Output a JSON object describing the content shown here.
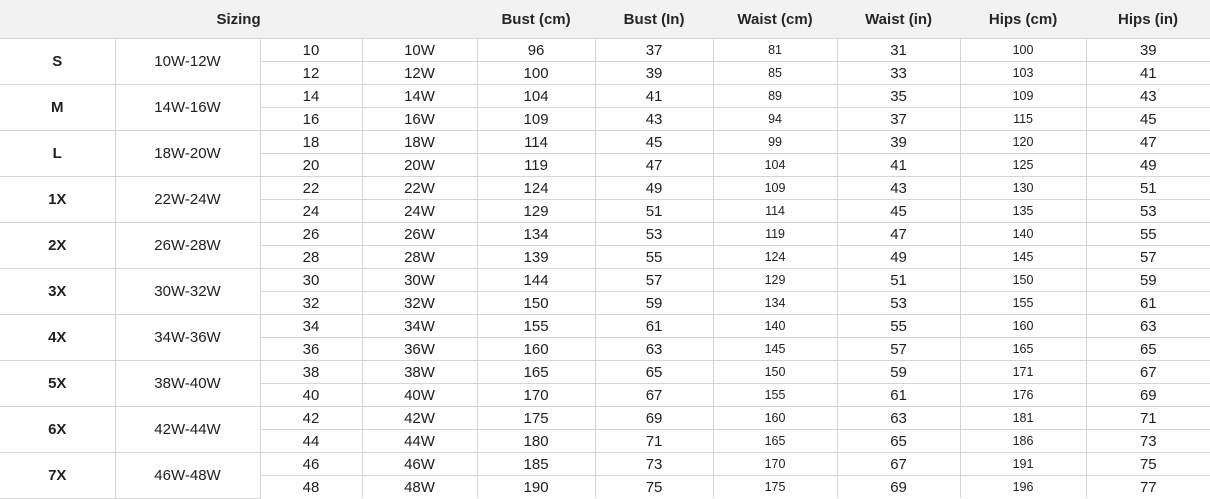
{
  "table": {
    "headers": {
      "sizing": "Sizing",
      "bust_cm": "Bust (cm)",
      "bust_in": "Bust (In)",
      "waist_cm": "Waist (cm)",
      "waist_in": "Waist (in)",
      "hips_cm": "Hips (cm)",
      "hips_in": "Hips (in)"
    },
    "columns_order": [
      "num",
      "numw",
      "bust-cm",
      "bust-in",
      "waist-cm",
      "waist-in",
      "hips-cm",
      "hips-in"
    ],
    "groups": [
      {
        "size": "S",
        "range": "10W-12W",
        "rows": [
          [
            "10",
            "10W",
            "96",
            "37",
            "81",
            "31",
            "100",
            "39"
          ],
          [
            "12",
            "12W",
            "100",
            "39",
            "85",
            "33",
            "103",
            "41"
          ]
        ]
      },
      {
        "size": "M",
        "range": "14W-16W",
        "rows": [
          [
            "14",
            "14W",
            "104",
            "41",
            "89",
            "35",
            "109",
            "43"
          ],
          [
            "16",
            "16W",
            "109",
            "43",
            "94",
            "37",
            "115",
            "45"
          ]
        ]
      },
      {
        "size": "L",
        "range": "18W-20W",
        "rows": [
          [
            "18",
            "18W",
            "114",
            "45",
            "99",
            "39",
            "120",
            "47"
          ],
          [
            "20",
            "20W",
            "119",
            "47",
            "104",
            "41",
            "125",
            "49"
          ]
        ]
      },
      {
        "size": "1X",
        "range": "22W-24W",
        "rows": [
          [
            "22",
            "22W",
            "124",
            "49",
            "109",
            "43",
            "130",
            "51"
          ],
          [
            "24",
            "24W",
            "129",
            "51",
            "114",
            "45",
            "135",
            "53"
          ]
        ]
      },
      {
        "size": "2X",
        "range": "26W-28W",
        "rows": [
          [
            "26",
            "26W",
            "134",
            "53",
            "119",
            "47",
            "140",
            "55"
          ],
          [
            "28",
            "28W",
            "139",
            "55",
            "124",
            "49",
            "145",
            "57"
          ]
        ]
      },
      {
        "size": "3X",
        "range": "30W-32W",
        "rows": [
          [
            "30",
            "30W",
            "144",
            "57",
            "129",
            "51",
            "150",
            "59"
          ],
          [
            "32",
            "32W",
            "150",
            "59",
            "134",
            "53",
            "155",
            "61"
          ]
        ]
      },
      {
        "size": "4X",
        "range": "34W-36W",
        "rows": [
          [
            "34",
            "34W",
            "155",
            "61",
            "140",
            "55",
            "160",
            "63"
          ],
          [
            "36",
            "36W",
            "160",
            "63",
            "145",
            "57",
            "165",
            "65"
          ]
        ]
      },
      {
        "size": "5X",
        "range": "38W-40W",
        "rows": [
          [
            "38",
            "38W",
            "165",
            "65",
            "150",
            "59",
            "171",
            "67"
          ],
          [
            "40",
            "40W",
            "170",
            "67",
            "155",
            "61",
            "176",
            "69"
          ]
        ]
      },
      {
        "size": "6X",
        "range": "42W-44W",
        "rows": [
          [
            "42",
            "42W",
            "175",
            "69",
            "160",
            "63",
            "181",
            "71"
          ],
          [
            "44",
            "44W",
            "180",
            "71",
            "165",
            "65",
            "186",
            "73"
          ]
        ]
      },
      {
        "size": "7X",
        "range": "46W-48W",
        "rows": [
          [
            "46",
            "46W",
            "185",
            "73",
            "170",
            "67",
            "191",
            "75"
          ],
          [
            "48",
            "48W",
            "190",
            "75",
            "175",
            "69",
            "196",
            "77"
          ]
        ]
      }
    ]
  },
  "colors": {
    "header_bg": "#f2f2f2",
    "border": "#d6d6d6",
    "text": "#212121"
  }
}
